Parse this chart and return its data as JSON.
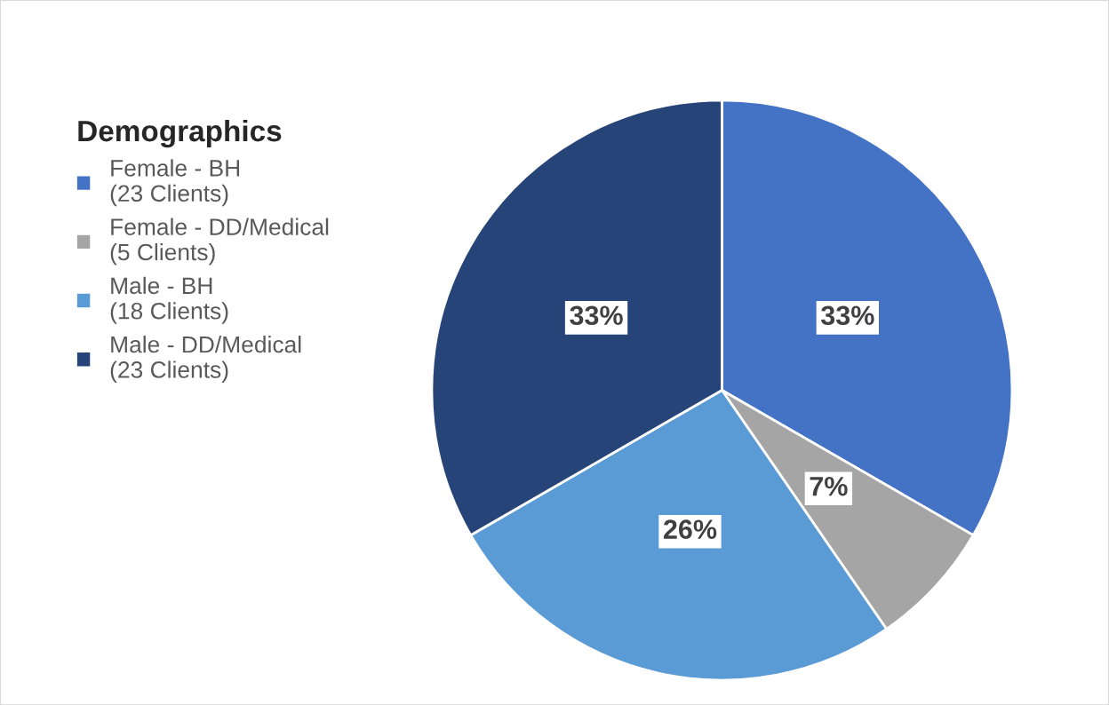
{
  "chart_data": {
    "type": "pie",
    "legend_title": "Demographics",
    "categories": [
      "Female - BH\n(23 Clients)",
      "Female - DD/Medical\n(5 Clients)",
      "Male - BH\n(18 Clients)",
      "Male - DD/Medical\n(23 Clients)"
    ],
    "values": [
      33,
      7,
      26,
      33
    ],
    "value_labels": [
      "33%",
      "7%",
      "26%",
      "33%"
    ],
    "colors": [
      "#4472c4",
      "#a5a5a5",
      "#5b9bd5",
      "#264478"
    ],
    "legend": "left"
  }
}
